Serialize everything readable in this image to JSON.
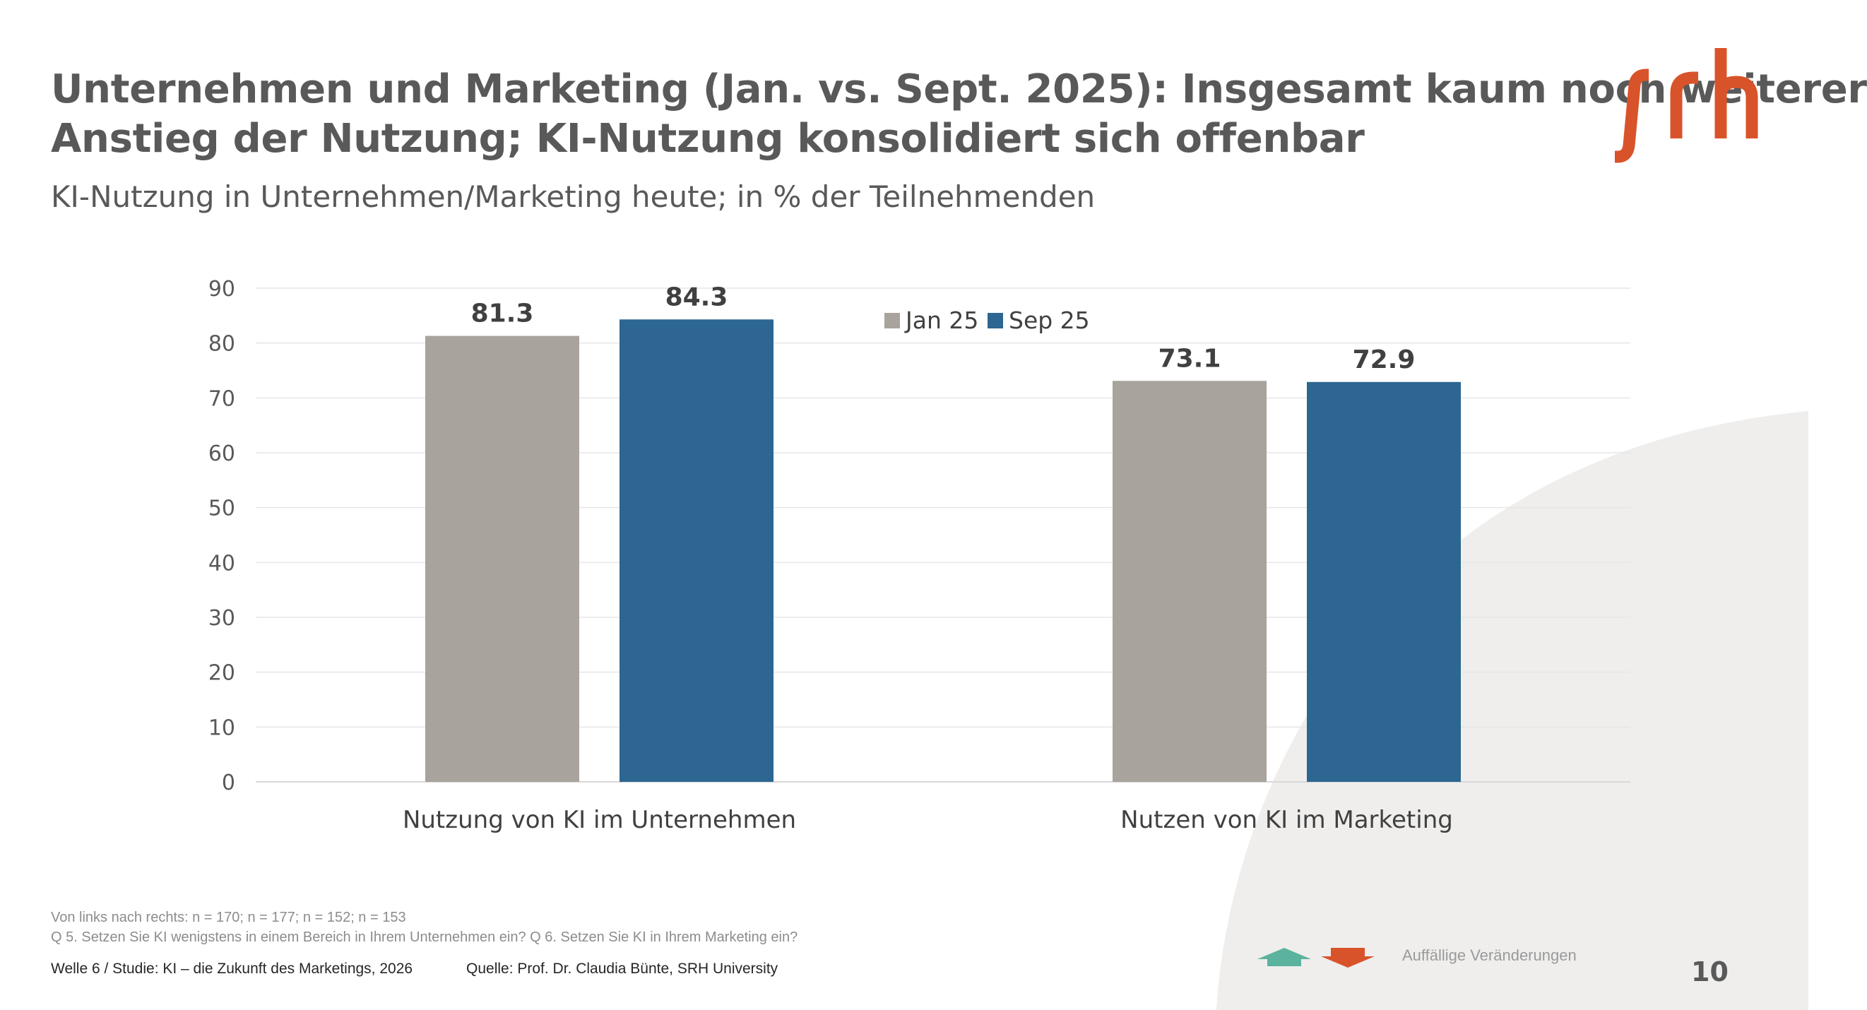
{
  "header": {
    "title_line1": "Unternehmen und Marketing (Jan. vs. Sept. 2025): Insgesamt kaum noch weiterer",
    "title_line2": "Anstieg der Nutzung; KI-Nutzung konsolidiert sich offenbar",
    "subtitle": "KI-Nutzung in Unternehmen/Marketing heute; in % der Teilnehmenden",
    "logo": "srh-logo"
  },
  "colors": {
    "jan": "#a8a39c",
    "sep": "#2d6691",
    "text": "#595959",
    "brand": "#d9532a",
    "up_arrow": "#5bb39e",
    "down_arrow": "#d9532a",
    "background_shape": "#efeeed"
  },
  "chart_data": {
    "type": "bar",
    "title": "KI-Nutzung in Unternehmen/Marketing heute; in % der Teilnehmenden",
    "categories": [
      "Nutzung von KI im Unternehmen",
      "Nutzen von KI im Marketing"
    ],
    "series": [
      {
        "name": "Jan 25",
        "values": [
          81.3,
          73.1
        ]
      },
      {
        "name": "Sep 25",
        "values": [
          84.3,
          72.9
        ]
      }
    ],
    "data_labels": [
      [
        "81.3",
        "73.1"
      ],
      [
        "84.3",
        "72.9"
      ]
    ],
    "ylim": [
      0,
      90
    ],
    "yticks": [
      "0",
      "10",
      "20",
      "30",
      "40",
      "50",
      "60",
      "70",
      "80",
      "90"
    ],
    "xlabel": "",
    "ylabel": "",
    "grid": true,
    "legend_position": "top-center"
  },
  "footnotes": {
    "sample": "Von links nach rechts: n = 170; n = 177; n = 152; n = 153",
    "questions": "Q 5. Setzen Sie KI wenigstens in einem Bereich in Ihrem Unternehmen ein? Q 6. Setzen Sie KI in Ihrem Marketing ein?"
  },
  "footer": {
    "study": "Welle 6 / Studie: KI – die Zukunft des Marketings, 2026",
    "source": "Quelle: Prof. Dr. Claudia Bünte, SRH University",
    "changes_label": "Auffällige Veränderungen",
    "page_number": "10"
  }
}
